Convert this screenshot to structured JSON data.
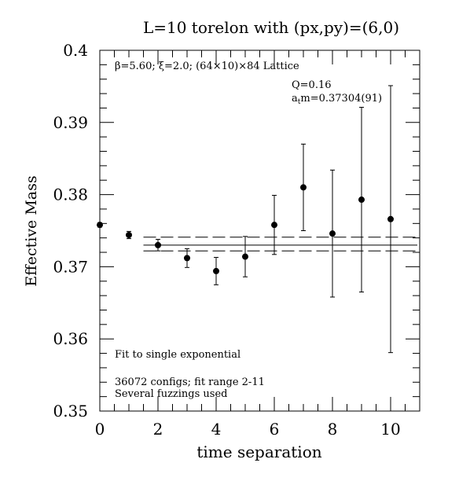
{
  "chart_data": {
    "type": "scatter",
    "title": "L=10 torelon with (px,py)=(6,0)",
    "xlabel": "time separation",
    "ylabel": "Effective Mass",
    "xlim": [
      0,
      11
    ],
    "ylim": [
      0.35,
      0.4
    ],
    "xticks": [
      0,
      2,
      4,
      6,
      8,
      10
    ],
    "yticks": [
      0.35,
      0.36,
      0.37,
      0.38,
      0.39,
      0.4
    ],
    "xtick_labels": [
      "0",
      "2",
      "4",
      "6",
      "8",
      "10"
    ],
    "ytick_labels": [
      "0.35",
      "0.36",
      "0.37",
      "0.38",
      "0.39",
      "0.4"
    ],
    "points": [
      {
        "x": 0,
        "y": 0.3758,
        "err": 0.0003
      },
      {
        "x": 1,
        "y": 0.3744,
        "err": 0.0005
      },
      {
        "x": 2,
        "y": 0.373,
        "err": 0.0008
      },
      {
        "x": 3,
        "y": 0.3712,
        "err": 0.0013
      },
      {
        "x": 4,
        "y": 0.3694,
        "err": 0.0019
      },
      {
        "x": 5,
        "y": 0.3714,
        "err": 0.0028
      },
      {
        "x": 6,
        "y": 0.3758,
        "err": 0.0041
      },
      {
        "x": 7,
        "y": 0.381,
        "err": 0.006
      },
      {
        "x": 8,
        "y": 0.3746,
        "err": 0.0088
      },
      {
        "x": 9,
        "y": 0.3793,
        "err": 0.0128
      },
      {
        "x": 10,
        "y": 0.3766,
        "err": 0.0185
      }
    ],
    "fit": {
      "x_range": [
        1.5,
        11
      ],
      "central": 0.373,
      "upper": 0.3741,
      "lower": 0.3722
    },
    "annotations": {
      "lattice": "β=5.60; ξ=2.0; (64×10)×84 Lattice",
      "q_label": "Q=0.16",
      "mass_label_prefix": "a",
      "mass_label_sub": "t",
      "mass_label_rest": "m=0.37304(91)",
      "fit_type": "Fit to single exponential",
      "configs": "36072 configs; fit range 2-11",
      "fuzzings": "Several fuzzings used"
    }
  }
}
